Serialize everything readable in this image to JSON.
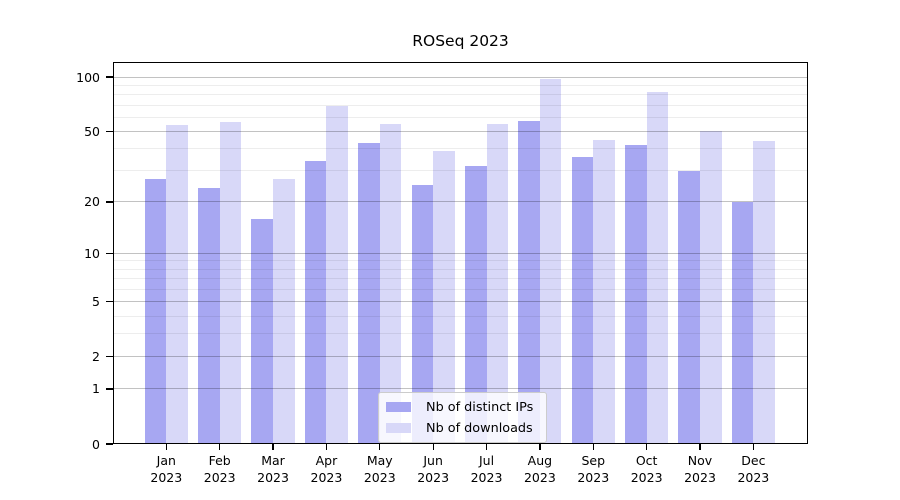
{
  "chart_data": {
    "type": "bar",
    "title": "ROSeq 2023",
    "categories": [
      "Jan 2023",
      "Feb 2023",
      "Mar 2023",
      "Apr 2023",
      "May 2023",
      "Jun 2023",
      "Jul 2023",
      "Aug 2023",
      "Sep 2023",
      "Oct 2023",
      "Nov 2023",
      "Dec 2023"
    ],
    "series": [
      {
        "name": "Nb of distinct IPs",
        "color": "#a7a7f2",
        "values": [
          27,
          24,
          16,
          34,
          43,
          25,
          32,
          57,
          36,
          42,
          30,
          20
        ]
      },
      {
        "name": "Nb of downloads",
        "color": "#d8d8f8",
        "values": [
          54,
          56,
          27,
          69,
          55,
          39,
          55,
          98,
          45,
          83,
          50,
          44
        ]
      }
    ],
    "xlabel": "",
    "ylabel": "",
    "yscale": "log1p",
    "ylim": [
      0,
      120
    ],
    "yticks_major": [
      0,
      1,
      2,
      5,
      10,
      20,
      50,
      100
    ],
    "yticks_minor": [
      3,
      4,
      6,
      7,
      8,
      9,
      30,
      40,
      60,
      70,
      80,
      90
    ],
    "grid": true,
    "legend_position": "lower center",
    "colors": {
      "axis": "#000000",
      "major_grid": "#c4c4c4",
      "minor_grid": "#ededed",
      "background": "#ffffff"
    }
  }
}
